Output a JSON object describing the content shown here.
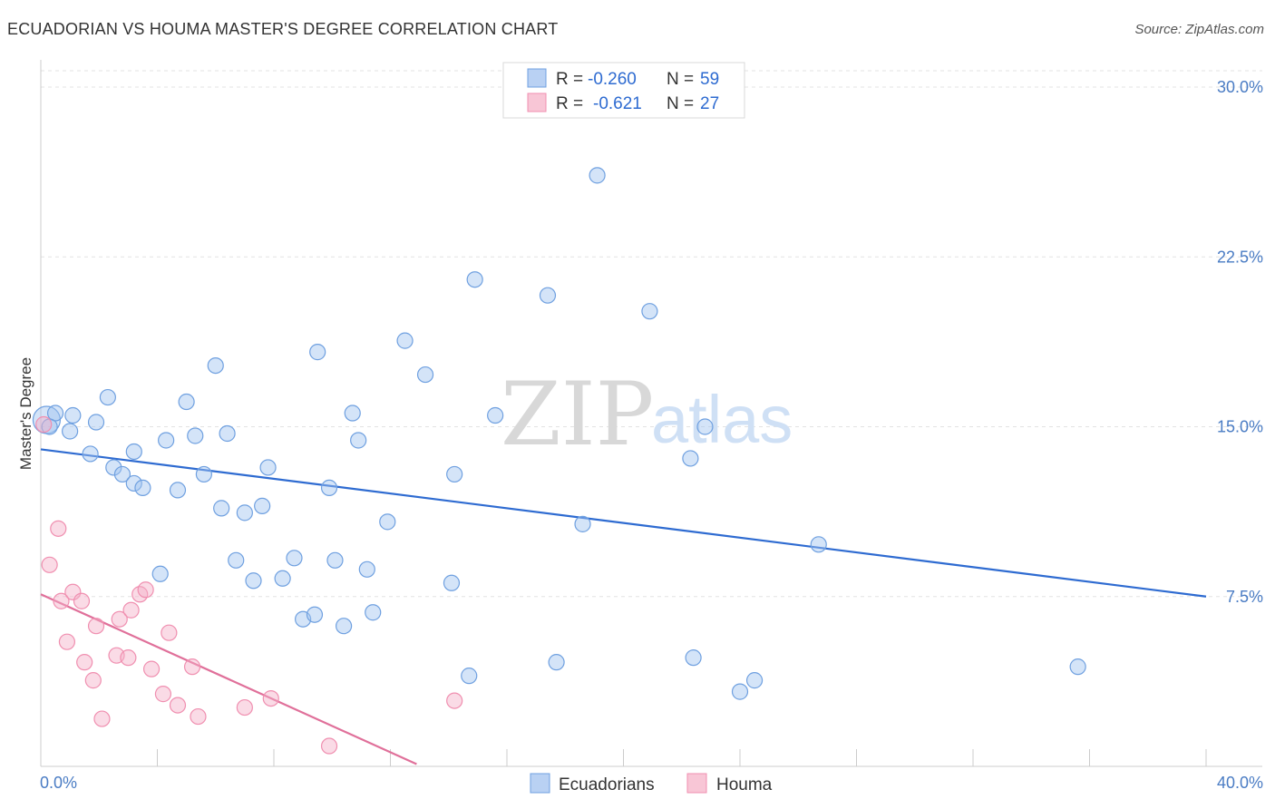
{
  "header": {
    "title": "ECUADORIAN VS HOUMA MASTER'S DEGREE CORRELATION CHART",
    "source": "Source: ZipAtlas.com"
  },
  "watermark": {
    "zip": "ZIP",
    "atlas": "atlas"
  },
  "legend": {
    "rows": [
      {
        "r_label": "R =",
        "r_value": "-0.260",
        "n_label": "N =",
        "n_value": "59",
        "color": "#6fa0e0"
      },
      {
        "r_label": "R =",
        "r_value": "-0.621",
        "n_label": "N =",
        "n_value": "27",
        "color": "#f08fb0"
      }
    ]
  },
  "bottom_legend": [
    {
      "label": "Ecuadorians",
      "color": "#6fa0e0"
    },
    {
      "label": "Houma",
      "color": "#f08fb0"
    }
  ],
  "chart_data": {
    "type": "scatter",
    "title": "ECUADORIAN VS HOUMA MASTER'S DEGREE CORRELATION CHART",
    "xlabel": "",
    "ylabel": "Master's Degree",
    "xlim": [
      0,
      40
    ],
    "ylim": [
      0,
      30
    ],
    "x_tick_labels": [
      "0.0%",
      "40.0%"
    ],
    "y_ticks": [
      7.5,
      15.0,
      22.5,
      30.0
    ],
    "y_tick_labels": [
      "7.5%",
      "15.0%",
      "22.5%",
      "30.0%"
    ],
    "series": [
      {
        "name": "Ecuadorians",
        "color": "#6fa0e0",
        "trend": {
          "x": [
            0,
            40
          ],
          "y": [
            14.0,
            7.5
          ]
        },
        "points": [
          [
            0.2,
            15.3
          ],
          [
            0.5,
            15.6
          ],
          [
            1.1,
            15.5
          ],
          [
            1.0,
            14.8
          ],
          [
            1.9,
            15.2
          ],
          [
            2.3,
            16.3
          ],
          [
            1.7,
            13.8
          ],
          [
            2.5,
            13.2
          ],
          [
            2.8,
            12.9
          ],
          [
            3.2,
            12.5
          ],
          [
            3.5,
            12.3
          ],
          [
            3.2,
            13.9
          ],
          [
            4.3,
            14.4
          ],
          [
            5.0,
            16.1
          ],
          [
            5.3,
            14.6
          ],
          [
            6.0,
            17.7
          ],
          [
            6.4,
            14.7
          ],
          [
            5.6,
            12.9
          ],
          [
            4.7,
            12.2
          ],
          [
            6.2,
            11.4
          ],
          [
            7.0,
            11.2
          ],
          [
            7.6,
            11.5
          ],
          [
            7.8,
            13.2
          ],
          [
            4.1,
            8.5
          ],
          [
            6.7,
            9.1
          ],
          [
            7.3,
            8.2
          ],
          [
            8.3,
            8.3
          ],
          [
            8.7,
            9.2
          ],
          [
            9.0,
            6.5
          ],
          [
            9.4,
            6.7
          ],
          [
            9.5,
            18.3
          ],
          [
            9.9,
            12.3
          ],
          [
            10.1,
            9.1
          ],
          [
            10.4,
            6.2
          ],
          [
            10.7,
            15.6
          ],
          [
            10.9,
            14.4
          ],
          [
            11.2,
            8.7
          ],
          [
            11.4,
            6.8
          ],
          [
            11.9,
            10.8
          ],
          [
            12.5,
            18.8
          ],
          [
            13.2,
            17.3
          ],
          [
            14.2,
            12.9
          ],
          [
            14.1,
            8.1
          ],
          [
            14.7,
            4.0
          ],
          [
            14.9,
            21.5
          ],
          [
            15.6,
            15.5
          ],
          [
            17.4,
            20.8
          ],
          [
            17.7,
            4.6
          ],
          [
            18.6,
            10.7
          ],
          [
            19.1,
            26.1
          ],
          [
            20.9,
            20.1
          ],
          [
            22.3,
            13.6
          ],
          [
            22.4,
            4.8
          ],
          [
            22.8,
            15.0
          ],
          [
            24.0,
            3.3
          ],
          [
            24.5,
            3.8
          ],
          [
            26.7,
            9.8
          ],
          [
            35.6,
            4.4
          ],
          [
            0.3,
            15.0
          ]
        ]
      },
      {
        "name": "Houma",
        "color": "#f08fb0",
        "trend": {
          "x": [
            0,
            12.9
          ],
          "y": [
            7.6,
            0.1
          ]
        },
        "points": [
          [
            0.1,
            15.1
          ],
          [
            0.6,
            10.5
          ],
          [
            0.3,
            8.9
          ],
          [
            0.7,
            7.3
          ],
          [
            1.1,
            7.7
          ],
          [
            1.4,
            7.3
          ],
          [
            0.9,
            5.5
          ],
          [
            1.5,
            4.6
          ],
          [
            1.8,
            3.8
          ],
          [
            1.9,
            6.2
          ],
          [
            2.1,
            2.1
          ],
          [
            2.6,
            4.9
          ],
          [
            2.7,
            6.5
          ],
          [
            3.0,
            4.8
          ],
          [
            3.1,
            6.9
          ],
          [
            3.4,
            7.6
          ],
          [
            3.6,
            7.8
          ],
          [
            3.8,
            4.3
          ],
          [
            4.2,
            3.2
          ],
          [
            4.4,
            5.9
          ],
          [
            4.7,
            2.7
          ],
          [
            5.2,
            4.4
          ],
          [
            5.4,
            2.2
          ],
          [
            7.0,
            2.6
          ],
          [
            7.9,
            3.0
          ],
          [
            9.9,
            0.9
          ],
          [
            14.2,
            2.9
          ]
        ]
      }
    ]
  }
}
